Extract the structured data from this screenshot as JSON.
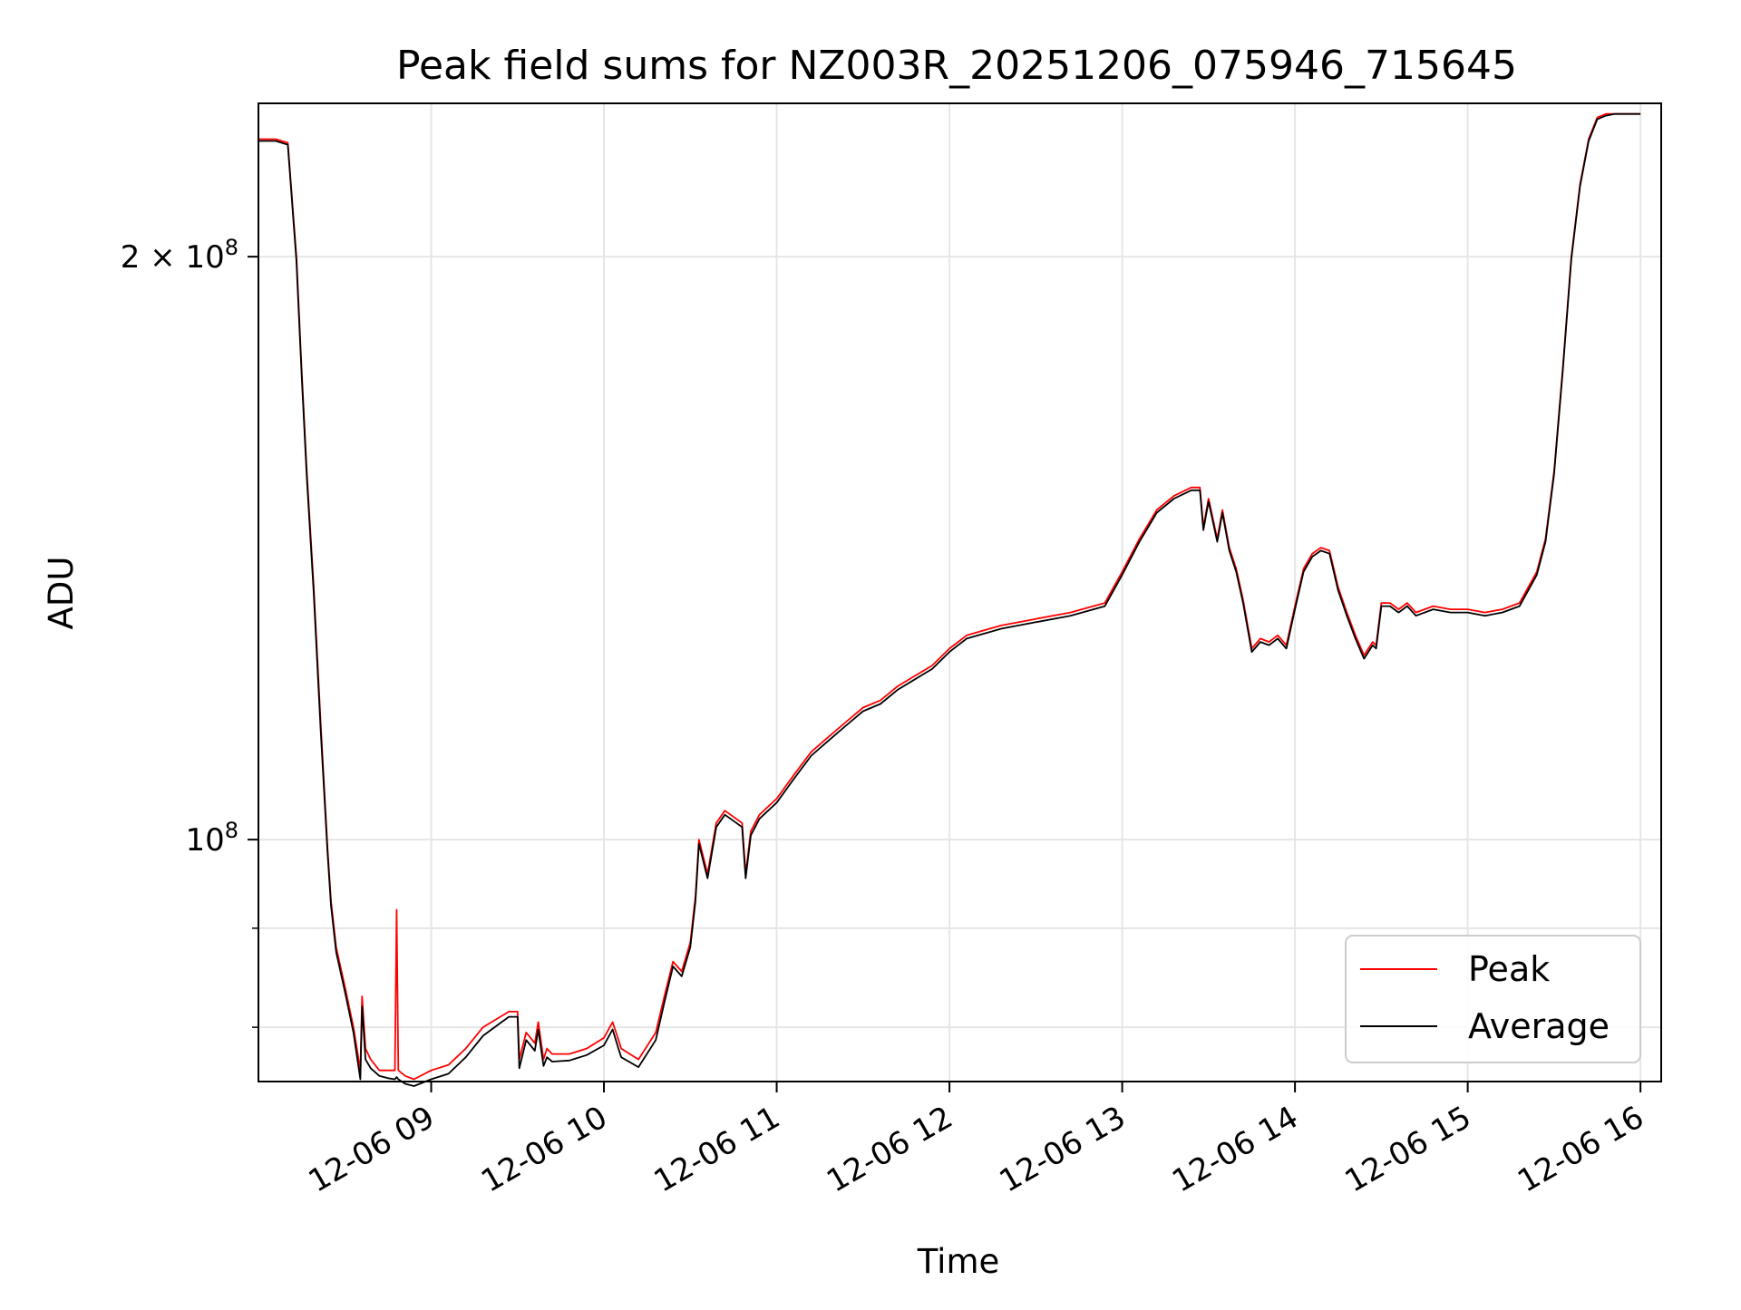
{
  "chart_data": {
    "type": "line",
    "title": "Peak field sums for NZ003R_20251206_075946_715645",
    "xlabel": "Time",
    "ylabel": "ADU",
    "x_unit": "time of day (hours), date 12-06",
    "xlim": [
      8.0,
      16.12
    ],
    "ylim": [
      75000000,
      240000000
    ],
    "y_scale": "log",
    "grid": true,
    "legend_position": "lower-right",
    "x_ticks": [
      {
        "value": 9,
        "label": "12-06 09"
      },
      {
        "value": 10,
        "label": "12-06 10"
      },
      {
        "value": 11,
        "label": "12-06 11"
      },
      {
        "value": 12,
        "label": "12-06 12"
      },
      {
        "value": 13,
        "label": "12-06 13"
      },
      {
        "value": 14,
        "label": "12-06 14"
      },
      {
        "value": 15,
        "label": "12-06 15"
      },
      {
        "value": 16,
        "label": "12-06 16"
      }
    ],
    "y_major_ticks": [
      {
        "value": 100000000,
        "label_base": "10",
        "label_exp": "8",
        "prefix": ""
      },
      {
        "value": 200000000,
        "label_base": "10",
        "label_exp": "8",
        "prefix": "2 × "
      }
    ],
    "y_minor_ticks": [
      80000000,
      90000000
    ],
    "series": [
      {
        "name": "Peak",
        "color": "#ff0000",
        "x": [
          8.0,
          8.1,
          8.17,
          8.22,
          8.25,
          8.28,
          8.32,
          8.36,
          8.4,
          8.42,
          8.45,
          8.5,
          8.55,
          8.59,
          8.6,
          8.62,
          8.65,
          8.7,
          8.75,
          8.79,
          8.8,
          8.81,
          8.85,
          8.9,
          9.0,
          9.1,
          9.2,
          9.3,
          9.4,
          9.45,
          9.5,
          9.51,
          9.55,
          9.6,
          9.62,
          9.65,
          9.67,
          9.7,
          9.8,
          9.9,
          10.0,
          10.05,
          10.08,
          10.1,
          10.2,
          10.3,
          10.35,
          10.4,
          10.45,
          10.5,
          10.53,
          10.55,
          10.6,
          10.65,
          10.7,
          10.8,
          10.82,
          10.85,
          10.9,
          11.0,
          11.1,
          11.2,
          11.3,
          11.4,
          11.5,
          11.6,
          11.7,
          11.8,
          11.9,
          12.0,
          12.05,
          12.1,
          12.3,
          12.5,
          12.7,
          12.9,
          12.95,
          13.0,
          13.1,
          13.2,
          13.3,
          13.4,
          13.45,
          13.47,
          13.5,
          13.55,
          13.58,
          13.62,
          13.66,
          13.7,
          13.75,
          13.8,
          13.85,
          13.9,
          13.95,
          14.0,
          14.05,
          14.1,
          14.15,
          14.2,
          14.25,
          14.3,
          14.35,
          14.4,
          14.45,
          14.47,
          14.5,
          14.55,
          14.6,
          14.65,
          14.7,
          14.8,
          14.9,
          15.0,
          15.1,
          15.2,
          15.3,
          15.4,
          15.45,
          15.5,
          15.55,
          15.6,
          15.65,
          15.7,
          15.75,
          15.8,
          15.85,
          15.9,
          15.95,
          16.0
        ],
        "y": [
          230000000,
          230000000,
          229000000,
          200000000,
          175000000,
          155000000,
          135000000,
          115000000,
          99000000,
          93000000,
          88000000,
          84000000,
          80000000,
          76000000,
          83000000,
          78000000,
          77000000,
          76000000,
          76000000,
          76000000,
          92000000,
          76000000,
          75500000,
          75200000,
          76000000,
          76500000,
          78000000,
          80000000,
          81000000,
          81500000,
          81500000,
          77000000,
          79500000,
          78500000,
          80500000,
          77000000,
          78000000,
          77500000,
          77500000,
          78000000,
          79000000,
          80500000,
          79000000,
          78000000,
          77000000,
          79500000,
          83000000,
          86500000,
          85500000,
          88500000,
          93500000,
          100000000,
          96000000,
          102000000,
          103500000,
          102000000,
          96000000,
          101000000,
          103000000,
          105000000,
          108000000,
          111000000,
          113000000,
          115000000,
          117000000,
          118000000,
          120000000,
          121500000,
          123000000,
          125500000,
          126500000,
          127500000,
          129000000,
          130000000,
          131000000,
          132500000,
          135000000,
          137500000,
          143000000,
          148000000,
          150500000,
          152000000,
          152000000,
          145000000,
          150000000,
          143000000,
          148000000,
          141500000,
          138000000,
          133000000,
          125500000,
          127000000,
          126500000,
          127500000,
          126000000,
          132000000,
          138000000,
          140500000,
          141500000,
          141000000,
          135000000,
          131000000,
          127500000,
          124500000,
          126500000,
          126000000,
          132500000,
          132500000,
          131500000,
          132500000,
          131000000,
          132000000,
          131500000,
          131500000,
          131000000,
          131500000,
          132500000,
          137500000,
          143000000,
          155000000,
          175000000,
          200000000,
          218000000,
          230000000,
          236000000,
          237000000,
          237000000,
          237000000,
          237000000,
          237000000
        ]
      },
      {
        "name": "Average",
        "color": "#000000",
        "x": [
          8.0,
          8.1,
          8.17,
          8.22,
          8.25,
          8.28,
          8.32,
          8.36,
          8.4,
          8.42,
          8.45,
          8.5,
          8.55,
          8.59,
          8.6,
          8.62,
          8.65,
          8.7,
          8.75,
          8.79,
          8.8,
          8.81,
          8.85,
          8.9,
          9.0,
          9.1,
          9.2,
          9.3,
          9.4,
          9.45,
          9.5,
          9.51,
          9.55,
          9.6,
          9.62,
          9.65,
          9.67,
          9.7,
          9.8,
          9.9,
          10.0,
          10.05,
          10.08,
          10.1,
          10.2,
          10.3,
          10.35,
          10.4,
          10.45,
          10.5,
          10.53,
          10.55,
          10.6,
          10.65,
          10.7,
          10.8,
          10.82,
          10.85,
          10.9,
          11.0,
          11.1,
          11.2,
          11.3,
          11.4,
          11.5,
          11.6,
          11.7,
          11.8,
          11.9,
          12.0,
          12.05,
          12.1,
          12.3,
          12.5,
          12.7,
          12.9,
          12.95,
          13.0,
          13.1,
          13.2,
          13.3,
          13.4,
          13.45,
          13.47,
          13.5,
          13.55,
          13.58,
          13.62,
          13.66,
          13.7,
          13.75,
          13.8,
          13.85,
          13.9,
          13.95,
          14.0,
          14.05,
          14.1,
          14.15,
          14.2,
          14.25,
          14.3,
          14.35,
          14.4,
          14.45,
          14.47,
          14.5,
          14.55,
          14.6,
          14.65,
          14.7,
          14.8,
          14.9,
          15.0,
          15.1,
          15.2,
          15.3,
          15.4,
          15.45,
          15.5,
          15.55,
          15.6,
          15.65,
          15.7,
          15.75,
          15.8,
          15.85,
          15.9,
          15.95,
          16.0
        ],
        "y": [
          229500000,
          229500000,
          228500000,
          199000000,
          174000000,
          154000000,
          134000000,
          114000000,
          98500000,
          92500000,
          87500000,
          83500000,
          79500000,
          75200000,
          82000000,
          77000000,
          76200000,
          75500000,
          75300000,
          75200000,
          75400000,
          75200000,
          74800000,
          74600000,
          75200000,
          75700000,
          77200000,
          79200000,
          80400000,
          81000000,
          81000000,
          76200000,
          78800000,
          77800000,
          79800000,
          76400000,
          77200000,
          76800000,
          76900000,
          77400000,
          78300000,
          79800000,
          78200000,
          77200000,
          76300000,
          78800000,
          82400000,
          86000000,
          85000000,
          88000000,
          93000000,
          99500000,
          95500000,
          101500000,
          103000000,
          101500000,
          95500000,
          100500000,
          102500000,
          104500000,
          107500000,
          110500000,
          112500000,
          114500000,
          116500000,
          117500000,
          119500000,
          121000000,
          122500000,
          125000000,
          126000000,
          127000000,
          128500000,
          129500000,
          130500000,
          132000000,
          134500000,
          137000000,
          142500000,
          147500000,
          150000000,
          151500000,
          151500000,
          144500000,
          149500000,
          142500000,
          147500000,
          141000000,
          137500000,
          132500000,
          125000000,
          126500000,
          126000000,
          127000000,
          125500000,
          131500000,
          137500000,
          140000000,
          141000000,
          140500000,
          134500000,
          130500000,
          127000000,
          124000000,
          126000000,
          125500000,
          132000000,
          132000000,
          131000000,
          132000000,
          130500000,
          131500000,
          131000000,
          131000000,
          130500000,
          131000000,
          132000000,
          137000000,
          142500000,
          154500000,
          174500000,
          199500000,
          217500000,
          229500000,
          235500000,
          236500000,
          237000000,
          237000000,
          237000000,
          237000000
        ]
      }
    ]
  }
}
